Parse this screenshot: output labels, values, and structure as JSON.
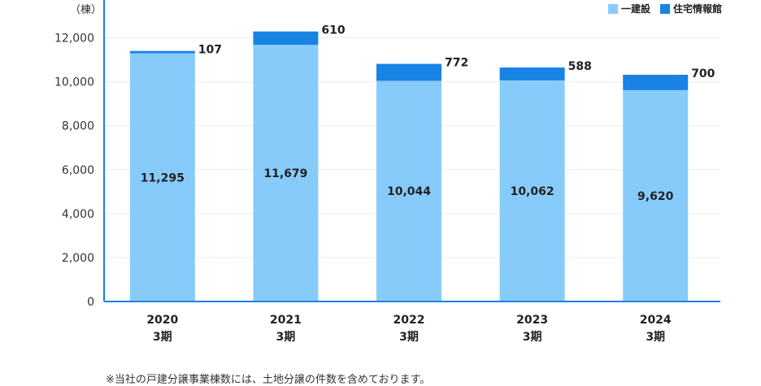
{
  "chart_data": {
    "type": "bar",
    "stacked": true,
    "unit_label": "（棟）",
    "categories": [
      [
        "2020",
        "3期"
      ],
      [
        "2021",
        "3期"
      ],
      [
        "2022",
        "3期"
      ],
      [
        "2023",
        "3期"
      ],
      [
        "2024",
        "3期"
      ]
    ],
    "series": [
      {
        "name": "一建設",
        "values": [
          11295,
          11679,
          10044,
          10062,
          9620
        ],
        "color": "#87cbfb",
        "labels": [
          "11,295",
          "11,679",
          "10,044",
          "10,062",
          "9,620"
        ]
      },
      {
        "name": "住宅情報館",
        "values": [
          107,
          610,
          772,
          588,
          700
        ],
        "color": "#1882e5",
        "labels": [
          "107",
          "610",
          "772",
          "588",
          "700"
        ]
      }
    ],
    "ylim": [
      0,
      13500
    ],
    "yticks": [
      0,
      2000,
      4000,
      6000,
      8000,
      10000,
      12000
    ],
    "ytick_labels": [
      "0",
      "2,000",
      "4,000",
      "6,000",
      "8,000",
      "10,000",
      "12,000"
    ],
    "grid": true,
    "legend_position": "top-right"
  },
  "footnote": "※当社の戸建分譲事業棟数には、土地分譲の件数を含めております。"
}
